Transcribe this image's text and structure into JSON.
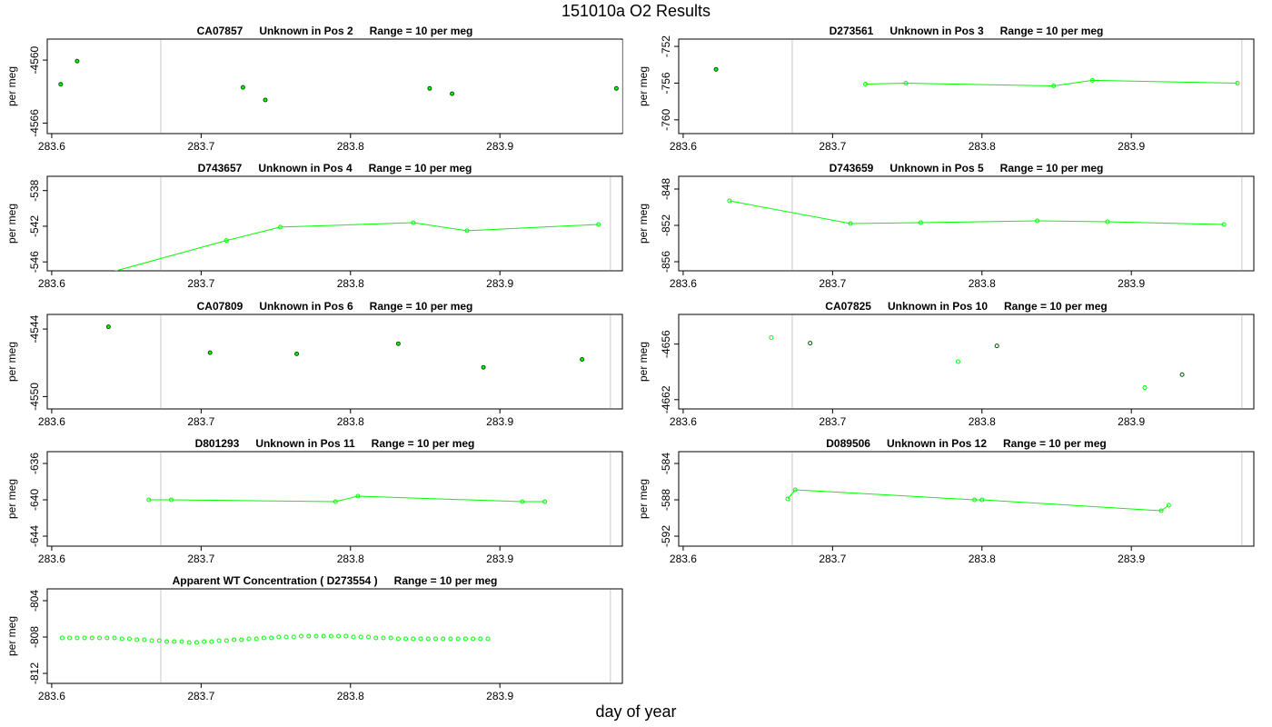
{
  "title": "151010a  O2 Results",
  "xlabel": "day of year",
  "colors": {
    "line": "#00ff00",
    "point_edge_dark": "#005500",
    "vline": "#c8c8c8",
    "frame": "#000000"
  },
  "chart_data": [
    {
      "type": "scatter",
      "title": {
        "id": "CA07857",
        "desc": "Unknown in Pos 2",
        "range": "Range = 10 per meg"
      },
      "ylabel": "per meg",
      "xlim": [
        283.597,
        283.982
      ],
      "ylim": [
        -4567,
        -4558
      ],
      "xticks": [
        "283.6",
        "283.7",
        "283.8",
        "283.9"
      ],
      "yticks": [
        "-4560",
        "-4566"
      ],
      "vlines": [
        283.673,
        283.982
      ],
      "connected": false,
      "point_style": "dark",
      "x": [
        283.606,
        283.617,
        283.728,
        283.743,
        283.853,
        283.868,
        283.978
      ],
      "y": [
        -4562.3,
        -4560.1,
        -4562.6,
        -4563.8,
        -4562.7,
        -4563.2,
        -4562.7
      ]
    },
    {
      "type": "line",
      "title": {
        "id": "D273561",
        "desc": "Unknown in Pos 3",
        "range": "Range = 10 per meg"
      },
      "ylabel": "per meg",
      "xlim": [
        283.597,
        283.982
      ],
      "ylim": [
        -761.5,
        -751.2
      ],
      "xticks": [
        "283.6",
        "283.7",
        "283.8",
        "283.9"
      ],
      "yticks": [
        "-752",
        "-756",
        "-760"
      ],
      "vlines": [
        283.673,
        283.974
      ],
      "single_points": {
        "x": [
          283.622
        ],
        "y": [
          -754.5
        ]
      },
      "x": [
        283.722,
        283.749,
        283.848,
        283.874,
        283.971
      ],
      "y": [
        -756.1,
        -756.0,
        -756.3,
        -755.7,
        -756.0
      ]
    },
    {
      "type": "line",
      "title": {
        "id": "D743657",
        "desc": "Unknown in Pos 4",
        "range": "Range = 10 per meg"
      },
      "ylabel": "per meg",
      "xlim": [
        283.597,
        283.982
      ],
      "ylim": [
        -547,
        -536.4
      ],
      "xticks": [
        "283.6",
        "283.7",
        "283.8",
        "283.9"
      ],
      "yticks": [
        "-538",
        "-542",
        "-546"
      ],
      "vlines": [
        283.673,
        283.974
      ],
      "x": [
        283.63,
        283.717,
        283.753,
        283.842,
        283.878,
        283.966
      ],
      "y": [
        -547.6,
        -543.6,
        -542.1,
        -541.6,
        -542.5,
        -541.8
      ]
    },
    {
      "type": "line",
      "title": {
        "id": "D743659",
        "desc": "Unknown in Pos 5",
        "range": "Range = 10 per meg"
      },
      "ylabel": "per meg",
      "xlim": [
        283.597,
        283.982
      ],
      "ylim": [
        -857,
        -846.6
      ],
      "xticks": [
        "283.6",
        "283.7",
        "283.8",
        "283.9"
      ],
      "yticks": [
        "-848",
        "-852",
        "-856"
      ],
      "vlines": [
        283.673,
        283.974
      ],
      "x": [
        283.631,
        283.712,
        283.759,
        283.837,
        283.884,
        283.962
      ],
      "y": [
        -849.3,
        -851.8,
        -851.7,
        -851.5,
        -851.6,
        -851.9
      ]
    },
    {
      "type": "scatter",
      "title": {
        "id": "CA07809",
        "desc": "Unknown in Pos 6",
        "range": "Range = 10 per meg"
      },
      "ylabel": "per meg",
      "xlim": [
        283.597,
        283.982
      ],
      "ylim": [
        -4551.1,
        -4542.7
      ],
      "xticks": [
        "283.6",
        "283.7",
        "283.8",
        "283.9"
      ],
      "yticks": [
        "-4544",
        "-4550"
      ],
      "vlines": [
        283.673,
        283.974
      ],
      "connected": false,
      "point_style": "dark",
      "x": [
        283.638,
        283.706,
        283.764,
        283.832,
        283.889,
        283.955
      ],
      "y": [
        -4543.8,
        -4546.1,
        -4546.2,
        -4545.3,
        -4547.4,
        -4546.7
      ]
    },
    {
      "type": "scatter",
      "title": {
        "id": "CA07825",
        "desc": "Unknown in Pos 10",
        "range": "Range = 10 per meg"
      },
      "ylabel": "per meg",
      "xlim": [
        283.597,
        283.982
      ],
      "ylim": [
        -4663,
        -4652.8
      ],
      "xticks": [
        "283.6",
        "283.7",
        "283.8",
        "283.9"
      ],
      "yticks": [
        "-4656",
        "-4662"
      ],
      "vlines": [
        283.673,
        283.974
      ],
      "connected": false,
      "point_style": "mixed",
      "x": [
        283.659,
        283.685,
        283.784,
        283.81,
        283.909,
        283.934
      ],
      "y": [
        -4655.3,
        -4655.9,
        -4657.9,
        -4656.2,
        -4660.7,
        -4659.3
      ]
    },
    {
      "type": "line",
      "title": {
        "id": "D801293",
        "desc": "Unknown in Pos 11",
        "range": "Range = 10 per meg"
      },
      "ylabel": "per meg",
      "xlim": [
        283.597,
        283.982
      ],
      "ylim": [
        -645.1,
        -634.7
      ],
      "xticks": [
        "283.6",
        "283.7",
        "283.8",
        "283.9"
      ],
      "yticks": [
        "-636",
        "-640",
        "-644"
      ],
      "vlines": [
        283.673,
        283.974
      ],
      "x": [
        283.665,
        283.68,
        283.79,
        283.805,
        283.915,
        283.93
      ],
      "y": [
        -640.0,
        -640.0,
        -640.2,
        -639.6,
        -640.2,
        -640.2
      ]
    },
    {
      "type": "line",
      "title": {
        "id": "D089506",
        "desc": "Unknown in Pos 12",
        "range": "Range = 10 per meg"
      },
      "ylabel": "per meg",
      "xlim": [
        283.597,
        283.982
      ],
      "ylim": [
        -593.1,
        -582.7
      ],
      "xticks": [
        "283.6",
        "283.7",
        "283.8",
        "283.9"
      ],
      "yticks": [
        "-584",
        "-588",
        "-592"
      ],
      "vlines": [
        283.673,
        283.974
      ],
      "x": [
        283.67,
        283.675,
        283.795,
        283.8,
        283.92,
        283.925
      ],
      "y": [
        -587.9,
        -586.9,
        -588.0,
        -588.0,
        -589.2,
        -588.6
      ]
    },
    {
      "type": "scatter",
      "title": {
        "id": "Apparent WT Concentration ( D273554 )",
        "desc": "",
        "range": "Range = 10 per meg"
      },
      "ylabel": "per meg",
      "xlim": [
        283.597,
        283.982
      ],
      "ylim": [
        -813.1,
        -802.7
      ],
      "xticks": [
        "283.6",
        "283.7",
        "283.8",
        "283.9"
      ],
      "yticks": [
        "-804",
        "-808",
        "-812"
      ],
      "vlines": [
        283.673,
        283.974
      ],
      "connected": false,
      "point_style": "light",
      "x_start": 283.607,
      "x_step": 0.005,
      "y": [
        -808.1,
        -808.1,
        -808.1,
        -808.1,
        -808.1,
        -808.1,
        -808.1,
        -808.1,
        -808.2,
        -808.2,
        -808.3,
        -808.3,
        -808.4,
        -808.4,
        -808.5,
        -808.5,
        -808.5,
        -808.6,
        -808.6,
        -808.5,
        -808.5,
        -808.4,
        -808.4,
        -808.3,
        -808.3,
        -808.2,
        -808.2,
        -808.1,
        -808.1,
        -808.0,
        -808.0,
        -808.0,
        -807.9,
        -807.9,
        -807.9,
        -807.9,
        -807.9,
        -807.9,
        -807.9,
        -808.0,
        -808.0,
        -808.0,
        -808.1,
        -808.1,
        -808.1,
        -808.2,
        -808.2,
        -808.2,
        -808.2,
        -808.2,
        -808.2,
        -808.2,
        -808.2,
        -808.2,
        -808.2,
        -808.2,
        -808.2,
        -808.2
      ]
    }
  ]
}
